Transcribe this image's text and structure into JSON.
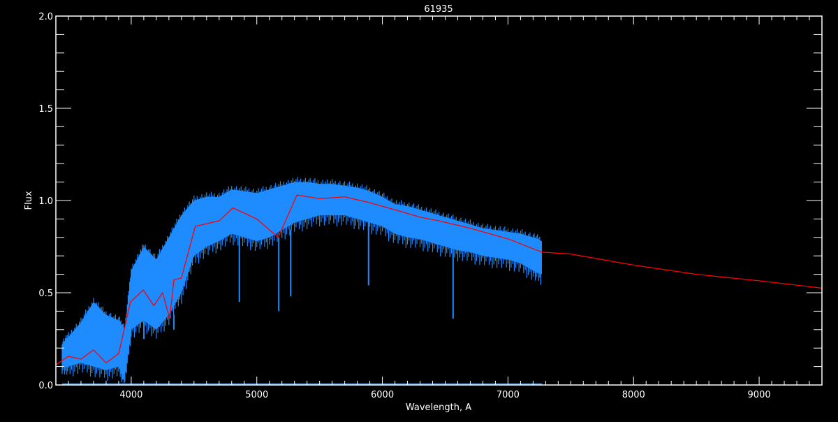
{
  "chart_data": {
    "type": "line",
    "title": "61935",
    "xlabel": "Wavelength, A",
    "ylabel": "Flux",
    "xlim": [
      3400,
      9500
    ],
    "ylim": [
      0,
      2.0
    ],
    "x_ticks": [
      4000,
      5000,
      6000,
      7000,
      8000,
      9000
    ],
    "x_tick_labels": [
      "4000",
      "5000",
      "6000",
      "7000",
      "8000",
      "9000"
    ],
    "y_ticks": [
      0,
      0.5,
      1.0,
      1.5,
      2.0
    ],
    "y_tick_labels": [
      "0.0",
      "0.5",
      "1.0",
      "1.5",
      "2.0"
    ],
    "grid": false,
    "colors": {
      "background": "#000000",
      "axes": "#ffffff",
      "observed": "#1e8cff",
      "model": "#ff0000"
    },
    "series": [
      {
        "role": "observed",
        "x": [
          3450,
          3500,
          3600,
          3700,
          3800,
          3900,
          3950,
          4000,
          4100,
          4200,
          4300,
          4400,
          4500,
          4600,
          4700,
          4800,
          4900,
          5000,
          5100,
          5200,
          5300,
          5400,
          5500,
          5600,
          5700,
          5800,
          5900,
          6000,
          6100,
          6200,
          6300,
          6400,
          6500,
          6600,
          6700,
          6800,
          6900,
          7000,
          7100,
          7200,
          7270
        ],
        "upper": [
          0.22,
          0.26,
          0.34,
          0.45,
          0.38,
          0.35,
          0.3,
          0.62,
          0.75,
          0.68,
          0.8,
          0.92,
          1.0,
          1.02,
          1.02,
          1.06,
          1.05,
          1.04,
          1.06,
          1.08,
          1.1,
          1.1,
          1.09,
          1.09,
          1.08,
          1.07,
          1.05,
          1.02,
          0.98,
          0.97,
          0.95,
          0.93,
          0.91,
          0.89,
          0.87,
          0.85,
          0.84,
          0.83,
          0.82,
          0.8,
          0.78
        ],
        "lower": [
          0.12,
          0.1,
          0.12,
          0.1,
          0.08,
          0.1,
          0.05,
          0.3,
          0.35,
          0.3,
          0.38,
          0.5,
          0.7,
          0.75,
          0.78,
          0.82,
          0.8,
          0.78,
          0.8,
          0.84,
          0.88,
          0.9,
          0.92,
          0.92,
          0.92,
          0.9,
          0.88,
          0.86,
          0.82,
          0.8,
          0.79,
          0.77,
          0.75,
          0.73,
          0.72,
          0.7,
          0.69,
          0.68,
          0.66,
          0.62,
          0.6
        ],
        "absorption_lines": [
          {
            "x": 3934,
            "y": 0.03
          },
          {
            "x": 3968,
            "y": 0.05
          },
          {
            "x": 4101,
            "y": 0.25
          },
          {
            "x": 4340,
            "y": 0.3
          },
          {
            "x": 4861,
            "y": 0.45
          },
          {
            "x": 5175,
            "y": 0.4
          },
          {
            "x": 5270,
            "y": 0.48
          },
          {
            "x": 5890,
            "y": 0.54
          },
          {
            "x": 6563,
            "y": 0.36
          }
        ]
      },
      {
        "role": "model",
        "x": [
          3400,
          3500,
          3600,
          3700,
          3800,
          3900,
          3994,
          4096,
          4180,
          4250,
          4306,
          4340,
          4400,
          4510,
          4700,
          4810,
          5000,
          5170,
          5320,
          5500,
          5700,
          5890,
          6100,
          6300,
          6450,
          6700,
          7010,
          7270,
          7500,
          8000,
          8500,
          9000,
          9500
        ],
        "y": [
          0.11,
          0.155,
          0.14,
          0.19,
          0.12,
          0.17,
          0.45,
          0.515,
          0.43,
          0.5,
          0.36,
          0.57,
          0.58,
          0.86,
          0.89,
          0.96,
          0.9,
          0.8,
          1.03,
          1.01,
          1.02,
          0.99,
          0.95,
          0.91,
          0.89,
          0.85,
          0.79,
          0.72,
          0.71,
          0.65,
          0.6,
          0.565,
          0.525
        ]
      },
      {
        "role": "error",
        "x": [
          3450,
          7270
        ],
        "y": [
          0.005,
          0.005
        ]
      }
    ]
  }
}
